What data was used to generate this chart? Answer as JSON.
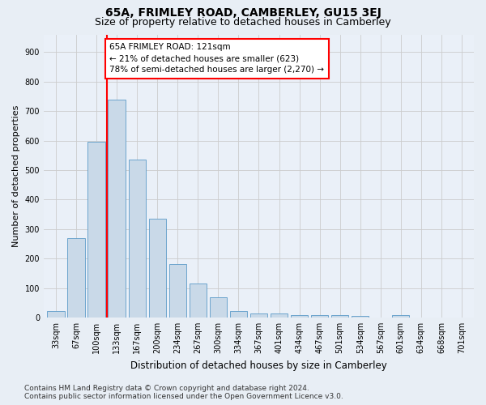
{
  "title": "65A, FRIMLEY ROAD, CAMBERLEY, GU15 3EJ",
  "subtitle": "Size of property relative to detached houses in Camberley",
  "xlabel": "Distribution of detached houses by size in Camberley",
  "ylabel": "Number of detached properties",
  "bar_labels": [
    "33sqm",
    "67sqm",
    "100sqm",
    "133sqm",
    "167sqm",
    "200sqm",
    "234sqm",
    "267sqm",
    "300sqm",
    "334sqm",
    "367sqm",
    "401sqm",
    "434sqm",
    "467sqm",
    "501sqm",
    "534sqm",
    "567sqm",
    "601sqm",
    "634sqm",
    "668sqm",
    "701sqm"
  ],
  "bar_values": [
    22,
    270,
    595,
    740,
    535,
    335,
    180,
    115,
    68,
    22,
    14,
    13,
    8,
    9,
    9,
    5,
    0,
    8,
    0,
    0,
    0
  ],
  "bar_color": "#c9d9e8",
  "bar_edge_color": "#5b9bc8",
  "annotation_text": "65A FRIMLEY ROAD: 121sqm\n← 21% of detached houses are smaller (623)\n78% of semi-detached houses are larger (2,270) →",
  "annotation_box_color": "white",
  "annotation_box_edge": "red",
  "vline_x": 2.5,
  "vline_color": "red",
  "ylim": [
    0,
    960
  ],
  "yticks": [
    0,
    100,
    200,
    300,
    400,
    500,
    600,
    700,
    800,
    900
  ],
  "grid_color": "#cccccc",
  "bg_color": "#e8eef5",
  "plot_bg_color": "#eaf0f8",
  "footer": "Contains HM Land Registry data © Crown copyright and database right 2024.\nContains public sector information licensed under the Open Government Licence v3.0.",
  "title_fontsize": 10,
  "subtitle_fontsize": 9,
  "xlabel_fontsize": 8.5,
  "ylabel_fontsize": 8,
  "tick_fontsize": 7,
  "footer_fontsize": 6.5
}
